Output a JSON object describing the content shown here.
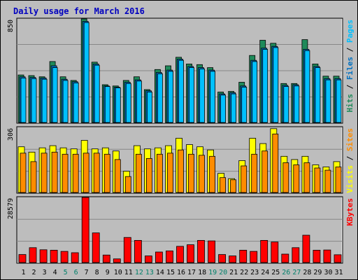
{
  "chart_data": {
    "type": "bar",
    "title": "Daily usage for March 2016",
    "colors": {
      "background": "#bdbdbd",
      "title": "#0000c0",
      "hits": "#1f8a5a",
      "files": "#0070c0",
      "pages": "#00c0ff",
      "visits": "#ffff00",
      "sites": "#ff8c00",
      "kbytes": "#ff0000",
      "weekend": "#00806a",
      "weekday": "#000000"
    },
    "categories": [
      "1",
      "2",
      "3",
      "4",
      "5",
      "6",
      "7",
      "8",
      "9",
      "10",
      "11",
      "12",
      "13",
      "14",
      "15",
      "16",
      "17",
      "18",
      "19",
      "20",
      "21",
      "22",
      "23",
      "24",
      "25",
      "26",
      "27",
      "28",
      "29",
      "30",
      "31"
    ],
    "weekend_days": [
      "5",
      "6",
      "12",
      "13",
      "19",
      "20",
      "26",
      "27"
    ],
    "panels": [
      {
        "id": "hits",
        "ymax_label": "850",
        "ymax": 850,
        "side_labels": [
          {
            "text": "Hits",
            "color": "#1f8a5a"
          },
          {
            "text": "Files",
            "color": "#0070c0"
          },
          {
            "text": "Pages",
            "color": "#00c0ff"
          }
        ],
        "series": [
          {
            "name": "Hits",
            "values": [
              390,
              385,
              375,
              500,
              375,
              345,
              850,
              495,
              310,
              300,
              345,
              375,
              270,
              435,
              465,
              535,
              480,
              475,
              450,
              250,
              255,
              330,
              550,
              675,
              650,
              320,
              320,
              680,
              480,
              380,
              380
            ]
          },
          {
            "name": "Files",
            "values": [
              375,
              370,
              365,
              465,
              355,
              335,
              830,
              480,
              300,
              290,
              330,
              350,
              260,
              410,
              430,
              520,
              460,
              450,
              430,
              235,
              245,
              300,
              510,
              610,
              625,
              305,
              310,
              600,
              460,
              360,
              360
            ]
          },
          {
            "name": "Pages",
            "values": [
              365,
              360,
              355,
              450,
              345,
              325,
              820,
              470,
              295,
              285,
              320,
              340,
              250,
              400,
              420,
              510,
              450,
              440,
              420,
              225,
              235,
              290,
              500,
              600,
              615,
              295,
              300,
              590,
              450,
              350,
              350
            ]
          }
        ]
      },
      {
        "id": "visits",
        "ymax_label": "306",
        "ymax": 306,
        "side_labels": [
          {
            "text": "Visits",
            "color": "#ffff00"
          },
          {
            "text": "Sites",
            "color": "#ff8c00"
          }
        ],
        "series": [
          {
            "name": "Visits",
            "values": [
              215,
              190,
              210,
              220,
              210,
              205,
              245,
              205,
              210,
              195,
              100,
              220,
              205,
              210,
              220,
              255,
              225,
              215,
              200,
              90,
              65,
              150,
              255,
              230,
              300,
              170,
              155,
              170,
              130,
              120,
              145
            ]
          },
          {
            "name": "Sites",
            "values": [
              185,
              145,
              185,
              190,
              180,
              180,
              185,
              185,
              180,
              155,
              75,
              180,
              160,
              180,
              185,
              200,
              180,
              175,
              170,
              70,
              60,
              125,
              180,
              195,
              275,
              140,
              130,
              140,
              115,
              105,
              120
            ]
          }
        ]
      },
      {
        "id": "kbytes",
        "ymax_label": "28579",
        "ymax": 28579,
        "side_labels": [
          {
            "text": "KBytes",
            "color": "#ff0000"
          }
        ],
        "series": [
          {
            "name": "KBytes",
            "values": [
              3500,
              6500,
              5600,
              5400,
              4900,
              4300,
              28579,
              13000,
              3300,
              1600,
              11000,
              9700,
              2900,
              4600,
              5100,
              7100,
              7800,
              9700,
              9500,
              3500,
              2900,
              5400,
              4900,
              9700,
              9000,
              3700,
              6500,
              12000,
              5400,
              5500,
              3400
            ]
          }
        ]
      }
    ]
  }
}
